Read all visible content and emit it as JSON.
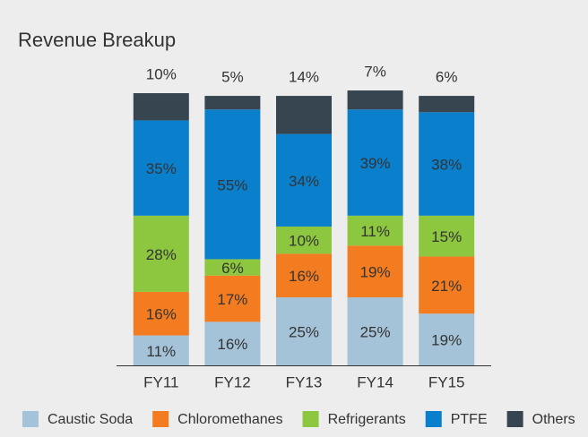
{
  "chart_data": {
    "type": "stacked_bar",
    "title": "Revenue Breakup",
    "categories": [
      "FY11",
      "FY12",
      "FY13",
      "FY14",
      "FY15"
    ],
    "series": [
      {
        "name": "Caustic Soda",
        "color": "#a5c3d8",
        "values": [
          11,
          16,
          25,
          25,
          19
        ],
        "value_labels": [
          "11%",
          "16%",
          "25%",
          "25%",
          "19%"
        ]
      },
      {
        "name": "Chloromethanes",
        "color": "#f47c20",
        "values": [
          16,
          17,
          16,
          19,
          21
        ],
        "value_labels": [
          "16%",
          "17%",
          "16%",
          "19%",
          "21%"
        ]
      },
      {
        "name": "Refrigerants",
        "color": "#8dc63f",
        "values": [
          28,
          6,
          10,
          11,
          15
        ],
        "value_labels": [
          "28%",
          "6%",
          "10%",
          "11%",
          "15%"
        ]
      },
      {
        "name": "PTFE",
        "color": "#0a7fcc",
        "values": [
          35,
          55,
          34,
          39,
          38
        ],
        "value_labels": [
          "35%",
          "55%",
          "34%",
          "39%",
          "38%"
        ]
      },
      {
        "name": "Others",
        "color": "#36454f",
        "values": [
          10,
          5,
          14,
          7,
          6
        ],
        "value_labels": [
          "10%",
          "5%",
          "14%",
          "7%",
          "6%"
        ]
      }
    ],
    "legend": "bottom"
  }
}
